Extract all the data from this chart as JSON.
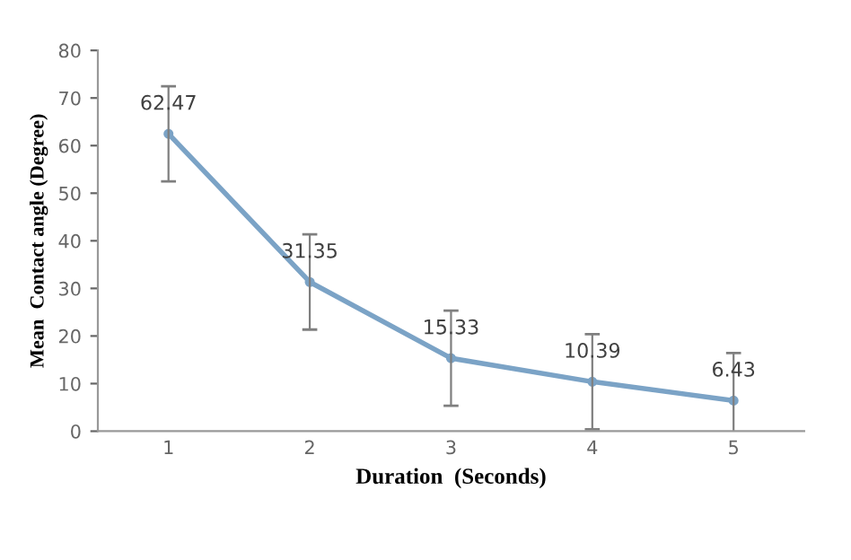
{
  "chart_data": {
    "type": "line",
    "xlabel": "Duration  (Seconds)",
    "ylabel": "Mean  Contact angle (Degree)",
    "categories": [
      "1",
      "2",
      "3",
      "4",
      "5"
    ],
    "series": [
      {
        "color": "#7ba3c6",
        "values": [
          62.47,
          31.35,
          15.33,
          10.39,
          6.43
        ],
        "errors": [
          10,
          10,
          10,
          10,
          10
        ]
      }
    ],
    "ylim": [
      0,
      80
    ],
    "yticks": [
      0,
      10,
      20,
      30,
      40,
      50,
      60,
      70,
      80
    ],
    "grid": false,
    "legend": false,
    "marker": "circle",
    "line_style": "solid",
    "data_labels": true
  }
}
